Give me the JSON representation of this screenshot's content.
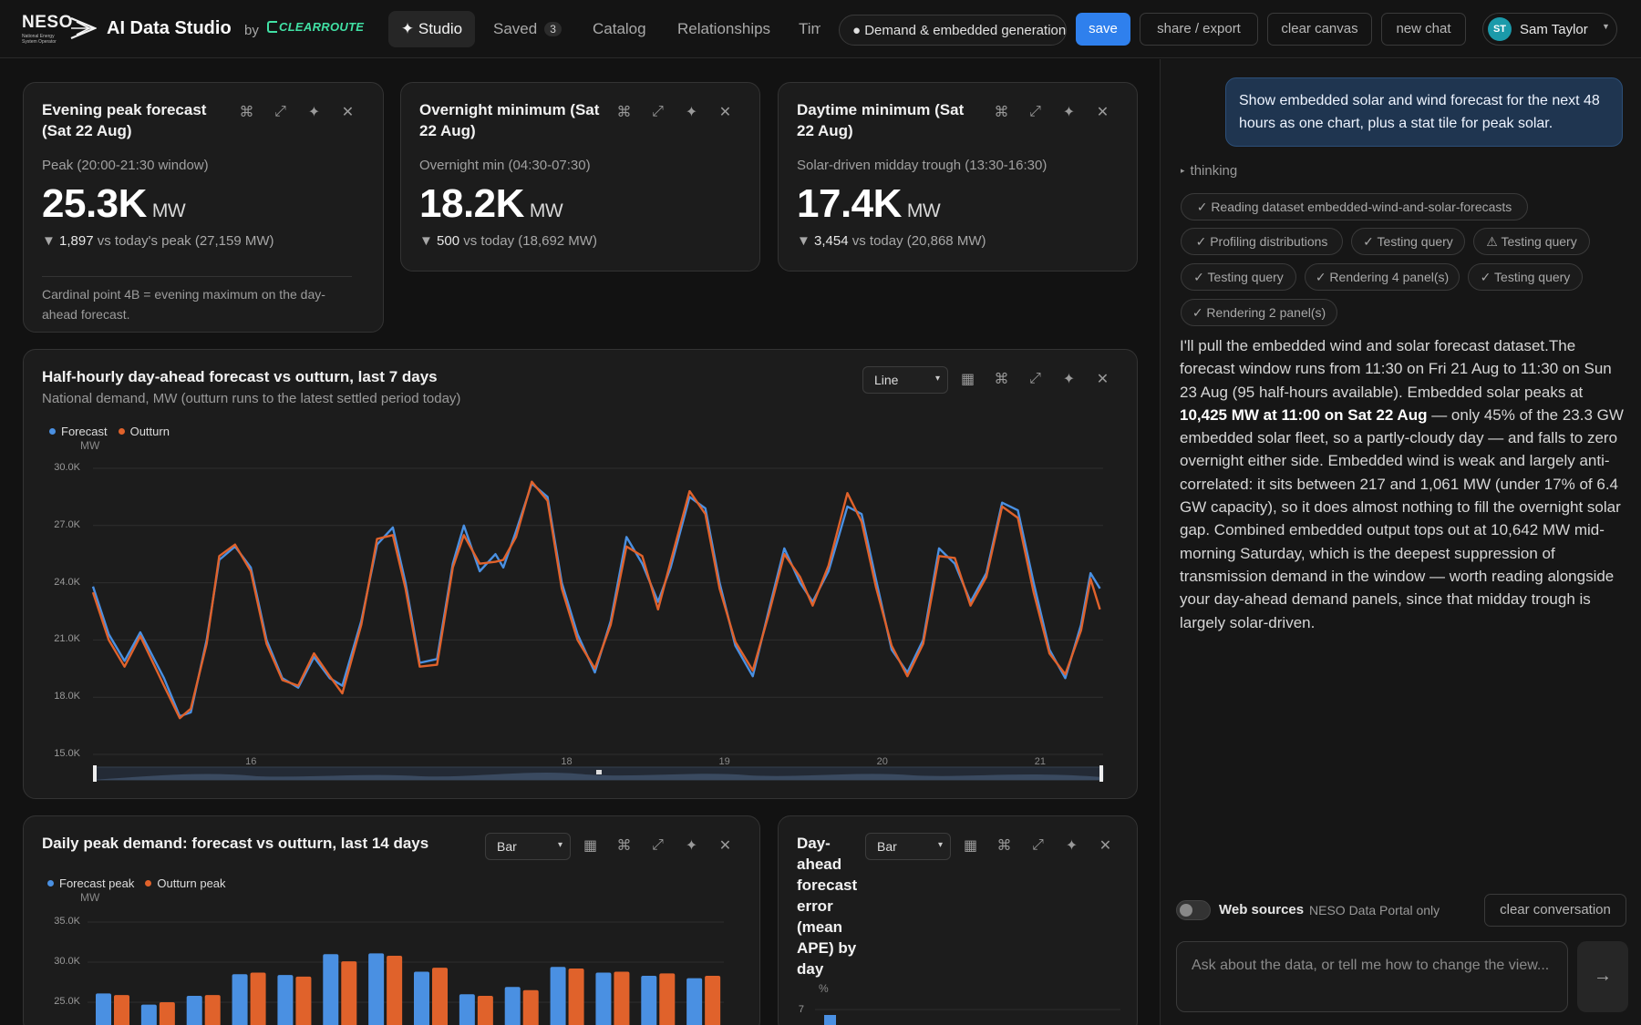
{
  "header": {
    "logo_text": "NESO",
    "logo_subtitle": "National Energy System Operator",
    "app_title": "AI Data Studio",
    "by_label": "by",
    "partner_logo_text": "CLEARROUTE",
    "nav": {
      "studio": "✦ Studio",
      "saved": "Saved",
      "saved_count": "3",
      "catalog": "Catalog",
      "relationships": "Relationships",
      "timeline_partial": "Tim"
    },
    "dataset_pill": "● Demand & embedded generation",
    "save": "save",
    "share_export": "share / export",
    "clear_canvas": "clear canvas",
    "new_chat": "new chat",
    "user": {
      "initials": "ST",
      "name": "Sam Taylor"
    }
  },
  "stat_cards": [
    {
      "title": "Evening peak forecast (Sat 22 Aug)",
      "sub": "Peak (20:00-21:30 window)",
      "value": "25.3K",
      "unit": "MW",
      "delta_value": "1,897",
      "delta_rest": "vs today's peak (27,159 MW)",
      "note": "Cardinal point 4B = evening maximum on the day-ahead forecast."
    },
    {
      "title": "Overnight minimum (Sat 22 Aug)",
      "sub": "Overnight min (04:30-07:30)",
      "value": "18.2K",
      "unit": "MW",
      "delta_value": "500",
      "delta_rest": "vs today (18,692 MW)"
    },
    {
      "title": "Daytime minimum (Sat 22 Aug)",
      "sub": "Solar-driven midday trough (13:30-16:30)",
      "value": "17.4K",
      "unit": "MW",
      "delta_value": "3,454",
      "delta_rest": "vs today (20,868 MW)"
    }
  ],
  "icons": {
    "delta_down": "▼",
    "command": "⌘",
    "expand": "⤢",
    "sparkle": "✦",
    "close": "✕",
    "table": "▦",
    "chevron": "⌄",
    "send": "→"
  },
  "chart_data": [
    {
      "type": "line",
      "title": "Half-hourly day-ahead forecast vs outturn, last 7 days",
      "subtitle": "National demand, MW (outturn runs to the latest settled period today)",
      "chart_type_select": "Line",
      "ylabel": "MW",
      "ylim": [
        15000,
        30000
      ],
      "yticks": [
        "30.0K",
        "27.0K",
        "24.0K",
        "21.0K",
        "18.0K",
        "15.0K"
      ],
      "xticks": [
        "16",
        "18",
        "19",
        "20",
        "21"
      ],
      "x_range_days": [
        15,
        21.4
      ],
      "legend_position": "top-left",
      "grid": true,
      "series": [
        {
          "name": "Forecast",
          "color": "#4a90e2",
          "points": [
            [
              15.0,
              23800
            ],
            [
              15.1,
              21300
            ],
            [
              15.2,
              19900
            ],
            [
              15.3,
              21400
            ],
            [
              15.45,
              19000
            ],
            [
              15.55,
              17000
            ],
            [
              15.62,
              17200
            ],
            [
              15.72,
              21000
            ],
            [
              15.8,
              25200
            ],
            [
              15.9,
              25900
            ],
            [
              16.0,
              24800
            ],
            [
              16.1,
              21000
            ],
            [
              16.2,
              19000
            ],
            [
              16.3,
              18500
            ],
            [
              16.4,
              20100
            ],
            [
              16.5,
              19000
            ],
            [
              16.58,
              18600
            ],
            [
              16.7,
              22000
            ],
            [
              16.8,
              26000
            ],
            [
              16.9,
              26900
            ],
            [
              16.98,
              24000
            ],
            [
              17.07,
              19800
            ],
            [
              17.18,
              20000
            ],
            [
              17.28,
              25000
            ],
            [
              17.35,
              27000
            ],
            [
              17.45,
              24600
            ],
            [
              17.55,
              25500
            ],
            [
              17.6,
              24800
            ],
            [
              17.68,
              26700
            ],
            [
              17.78,
              29200
            ],
            [
              17.88,
              28500
            ],
            [
              17.97,
              24000
            ],
            [
              18.07,
              21300
            ],
            [
              18.18,
              19300
            ],
            [
              18.28,
              22000
            ],
            [
              18.38,
              26400
            ],
            [
              18.48,
              25000
            ],
            [
              18.58,
              23000
            ],
            [
              18.66,
              24800
            ],
            [
              18.78,
              28500
            ],
            [
              18.88,
              27900
            ],
            [
              18.97,
              24000
            ],
            [
              19.07,
              20700
            ],
            [
              19.18,
              19100
            ],
            [
              19.28,
              22500
            ],
            [
              19.38,
              25800
            ],
            [
              19.48,
              24000
            ],
            [
              19.56,
              23000
            ],
            [
              19.66,
              24600
            ],
            [
              19.78,
              28000
            ],
            [
              19.87,
              27600
            ],
            [
              19.96,
              24200
            ],
            [
              20.06,
              20500
            ],
            [
              20.16,
              19300
            ],
            [
              20.26,
              21000
            ],
            [
              20.36,
              25800
            ],
            [
              20.46,
              25000
            ],
            [
              20.56,
              23000
            ],
            [
              20.66,
              24500
            ],
            [
              20.76,
              28200
            ],
            [
              20.86,
              27800
            ],
            [
              20.96,
              24000
            ],
            [
              21.06,
              20500
            ],
            [
              21.16,
              19000
            ],
            [
              21.26,
              21800
            ],
            [
              21.32,
              24500
            ],
            [
              21.38,
              23700
            ]
          ]
        },
        {
          "name": "Outturn",
          "color": "#e0622b",
          "points": [
            [
              15.0,
              23500
            ],
            [
              15.1,
              21000
            ],
            [
              15.2,
              19600
            ],
            [
              15.3,
              21200
            ],
            [
              15.45,
              18600
            ],
            [
              15.55,
              16900
            ],
            [
              15.62,
              17400
            ],
            [
              15.72,
              20800
            ],
            [
              15.8,
              25400
            ],
            [
              15.9,
              26000
            ],
            [
              16.0,
              24600
            ],
            [
              16.1,
              20800
            ],
            [
              16.2,
              18900
            ],
            [
              16.3,
              18600
            ],
            [
              16.4,
              20300
            ],
            [
              16.5,
              19100
            ],
            [
              16.58,
              18200
            ],
            [
              16.7,
              21800
            ],
            [
              16.8,
              26300
            ],
            [
              16.9,
              26500
            ],
            [
              16.98,
              23700
            ],
            [
              17.07,
              19600
            ],
            [
              17.18,
              19700
            ],
            [
              17.28,
              24800
            ],
            [
              17.35,
              26500
            ],
            [
              17.45,
              25000
            ],
            [
              17.55,
              25100
            ],
            [
              17.6,
              25200
            ],
            [
              17.68,
              26400
            ],
            [
              17.78,
              29300
            ],
            [
              17.88,
              28300
            ],
            [
              17.97,
              23700
            ],
            [
              18.07,
              21000
            ],
            [
              18.18,
              19500
            ],
            [
              18.28,
              21800
            ],
            [
              18.38,
              25900
            ],
            [
              18.48,
              25400
            ],
            [
              18.58,
              22600
            ],
            [
              18.66,
              25100
            ],
            [
              18.78,
              28800
            ],
            [
              18.88,
              27600
            ],
            [
              18.97,
              23700
            ],
            [
              19.07,
              20900
            ],
            [
              19.18,
              19400
            ],
            [
              19.28,
              22300
            ],
            [
              19.38,
              25500
            ],
            [
              19.48,
              24300
            ],
            [
              19.56,
              22800
            ],
            [
              19.66,
              24900
            ],
            [
              19.78,
              28700
            ],
            [
              19.87,
              27200
            ],
            [
              19.96,
              23800
            ],
            [
              20.06,
              20700
            ],
            [
              20.16,
              19100
            ],
            [
              20.26,
              20800
            ],
            [
              20.36,
              25400
            ],
            [
              20.46,
              25300
            ],
            [
              20.56,
              22800
            ],
            [
              20.66,
              24300
            ],
            [
              20.76,
              28000
            ],
            [
              20.86,
              27400
            ],
            [
              20.96,
              23500
            ],
            [
              21.06,
              20300
            ],
            [
              21.16,
              19200
            ],
            [
              21.26,
              21500
            ],
            [
              21.32,
              24200
            ],
            [
              21.38,
              22600
            ]
          ]
        }
      ]
    },
    {
      "type": "bar",
      "title": "Daily peak demand: forecast vs outturn, last 14 days",
      "chart_type_select": "Bar",
      "ylabel": "MW",
      "ylim": [
        20000,
        35000
      ],
      "yticks": [
        "35.0K",
        "30.0K",
        "25.0K"
      ],
      "legend_position": "top-left",
      "grid": true,
      "series": [
        {
          "name": "Forecast peak",
          "color": "#4a90e2",
          "values": [
            26100,
            24700,
            25800,
            28500,
            28400,
            31000,
            31100,
            28800,
            26000,
            26900,
            29400,
            28700,
            28300,
            28000
          ]
        },
        {
          "name": "Outturn peak",
          "color": "#e0622b",
          "values": [
            25900,
            25000,
            25900,
            28700,
            28200,
            30100,
            30800,
            29300,
            25800,
            26500,
            29200,
            28800,
            28600,
            28300
          ]
        }
      ]
    },
    {
      "type": "bar",
      "title": "Day-ahead forecast error (mean APE) by day",
      "chart_type_select": "Bar",
      "ylabel": "%",
      "yticks": [
        "7"
      ]
    }
  ],
  "chat": {
    "user_message": "Show embedded solar and wind forecast for the next 48 hours as one chart, plus a stat tile for peak solar.",
    "thinking_label": "thinking",
    "steps": [
      "✓ Reading dataset embedded-wind-and-solar-forecasts",
      "✓ Profiling distributions",
      "✓ Testing query",
      "⚠ Testing query",
      "✓ Testing query",
      "✓ Rendering 4 panel(s)",
      "✓ Testing query",
      "✓ Rendering 2 panel(s)"
    ],
    "answer_part1": "I'll pull the embedded wind and solar forecast dataset.The forecast window runs from 11:30 on Fri 21 Aug to 11:30 on Sun 23 Aug (95 half-hours available). Embedded solar peaks at ",
    "answer_bold": "10,425 MW at 11:00 on Sat 22 Aug",
    "answer_part2": " — only 45% of the 23.3 GW embedded solar fleet, so a partly-cloudy day — and falls to zero overnight either side. Embedded wind is weak and largely anti-correlated: it sits between 217 and 1,061 MW (under 17% of 6.4 GW capacity), so it does almost nothing to fill the overnight solar gap. Combined embedded output tops out at 10,642 MW mid-morning Saturday, which is the deepest suppression of transmission demand in the window — worth reading alongside your day-ahead demand panels, since that midday trough is largely solar-driven.",
    "web_sources_label": "Web sources",
    "web_sources_scope": "NESO Data Portal only",
    "web_sources_enabled": false,
    "clear_conversation": "clear conversation",
    "input_placeholder": "Ask about the data, or tell me how to change the view..."
  }
}
